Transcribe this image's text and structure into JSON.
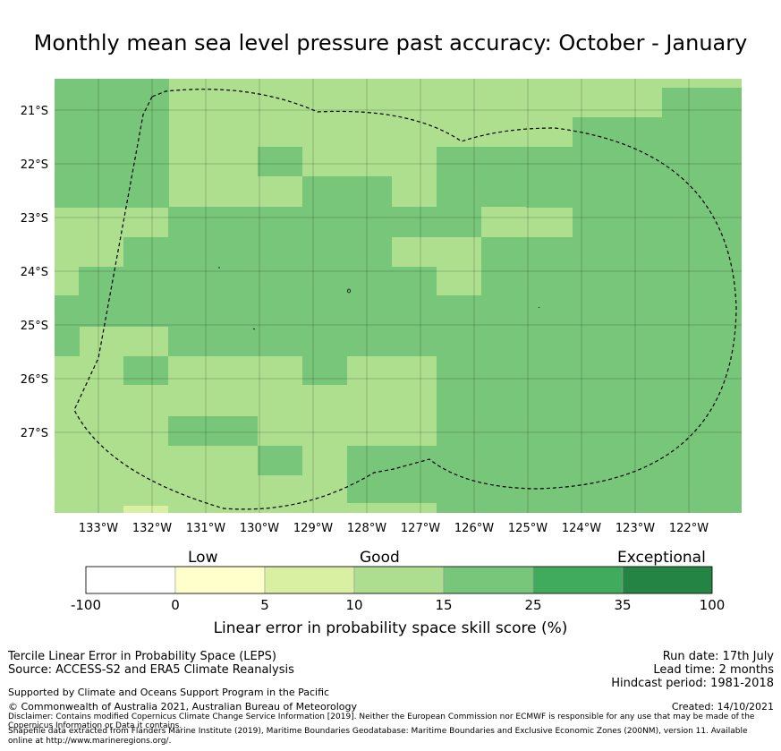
{
  "title": "Monthly mean sea level pressure past accuracy: October - January",
  "map": {
    "lat_labels": [
      "21°S",
      "22°S",
      "23°S",
      "24°S",
      "25°S",
      "26°S",
      "27°S"
    ],
    "lon_labels": [
      "133°W",
      "132°W",
      "131°W",
      "130°W",
      "129°W",
      "128°W",
      "127°W",
      "126°W",
      "125°W",
      "124°W",
      "123°W",
      "122°W"
    ],
    "colors": {
      "good10": "#addf8e",
      "good15": "#78c679",
      "border": "#000000"
    }
  },
  "colorbar": {
    "category_labels": {
      "low": "Low",
      "good": "Good",
      "exceptional": "Exceptional"
    },
    "ticks": [
      "-100",
      "0",
      "5",
      "10",
      "15",
      "25",
      "35",
      "100"
    ],
    "colors": [
      "#ffffff",
      "#ffffcc",
      "#d9f0a3",
      "#addd8e",
      "#78c679",
      "#41ab5d",
      "#238443"
    ],
    "label": "Linear error in probability space skill score (%)"
  },
  "footer": {
    "left1": "Tercile Linear Error in Probability Space (LEPS)",
    "left2": "Source: ACCESS-S2 and ERA5 Climate Reanalysis",
    "right1": "Run date: 17th July",
    "right2": "Lead time: 2 months",
    "right3": "Hindcast period: 1981-2018",
    "supported": "Supported by Climate and Oceans Support Program in the Pacific",
    "copyright": "© Commonwealth of Australia 2021, Australian Bureau of Meteorology",
    "created": "Created: 14/10/2021",
    "disclaimer1": "Disclaimer: Contains modified Copernicus Climate Change Service Information [2019]. Neither the European Commission nor ECMWF is responsible for any use that may be made of the",
    "disclaimer2": "Copernicus Information or Data it contains.",
    "shapefile1": "Shapefile data extracted from Flanders Marine Institute (2019), Maritime Boundaries Geodatabase: Maritime Boundaries and Exclusive Economic Zones (200NM), version 11. Available",
    "shapefile2": "online at http://www.marineregions.org/."
  }
}
